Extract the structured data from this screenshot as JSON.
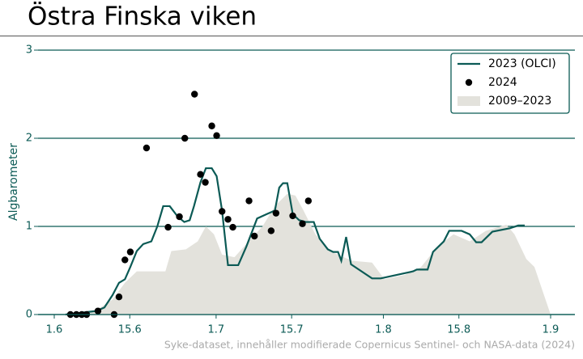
{
  "chart_data": {
    "type": "line",
    "title": "Östra Finska viken",
    "ylabel": "Algbarometer",
    "source": "Syke-dataset, innehåller modifierade Copernicus Sentinel- och NASA-data (2024)",
    "xlim": [
      -3,
      96.5
    ],
    "xticks": [
      {
        "value": 0,
        "label": "1.6"
      },
      {
        "value": 14,
        "label": "15.6"
      },
      {
        "value": 30,
        "label": "1.7"
      },
      {
        "value": 44,
        "label": "15.7"
      },
      {
        "value": 61,
        "label": "1.8"
      },
      {
        "value": 75,
        "label": "15.8"
      },
      {
        "value": 92,
        "label": "1.9"
      }
    ],
    "ylim": [
      0,
      3
    ],
    "yticks": [
      0,
      1,
      2,
      3
    ],
    "grid": true,
    "legend": "upper right",
    "series": [
      {
        "name": "2023 (OLCI)",
        "type": "line",
        "color": "#0b5a55",
        "x": [
          2.1,
          7.8,
          9.3,
          10.8,
          12,
          13.1,
          14.1,
          15.3,
          16.5,
          18,
          19.1,
          20.2,
          21.4,
          22.9,
          24.1,
          25.1,
          25.9,
          27.1,
          28.1,
          29.2,
          30.1,
          31.1,
          32.2,
          34.1,
          35.6,
          37.6,
          39.4,
          40.9,
          41.7,
          42.4,
          43.2,
          44.2,
          45.4,
          46.6,
          48.1,
          49.2,
          50.7,
          51.7,
          52.6,
          53.2,
          54.1,
          55,
          58.9,
          60.5,
          66.5,
          67.2,
          69.2,
          70.2,
          72.2,
          73.2,
          75.5,
          77,
          78.2,
          79.2,
          81.2,
          84.5,
          86,
          87.2
        ],
        "values": [
          0,
          0.04,
          0.08,
          0.22,
          0.36,
          0.4,
          0.54,
          0.72,
          0.8,
          0.83,
          1.0,
          1.23,
          1.23,
          1.11,
          1.05,
          1.07,
          1.23,
          1.5,
          1.66,
          1.66,
          1.57,
          1.18,
          0.56,
          0.56,
          0.77,
          1.09,
          1.14,
          1.18,
          1.44,
          1.49,
          1.49,
          1.14,
          1.07,
          1.05,
          1.05,
          0.86,
          0.74,
          0.71,
          0.71,
          0.61,
          0.88,
          0.57,
          0.41,
          0.41,
          0.49,
          0.51,
          0.51,
          0.71,
          0.83,
          0.95,
          0.95,
          0.91,
          0.82,
          0.82,
          0.94,
          0.98,
          1.01,
          1.01
        ]
      },
      {
        "name": "2024",
        "type": "scatter",
        "color": "#000000",
        "x": [
          3.0,
          4.1,
          5.1,
          6.0,
          8.1,
          11.1,
          12.0,
          13.1,
          14.1,
          17.1,
          21.1,
          23.2,
          24.2,
          26.0,
          27.1,
          28.0,
          29.2,
          30.1,
          31.1,
          32.2,
          33.1,
          36.1,
          37.1,
          40.2,
          41.1,
          44.2,
          46.0,
          47.1
        ],
        "values": [
          0,
          0,
          0,
          0,
          0.04,
          0,
          0.2,
          0.62,
          0.71,
          1.89,
          0.99,
          1.11,
          2.0,
          2.5,
          1.59,
          1.5,
          2.14,
          2.03,
          1.17,
          1.08,
          0.99,
          1.29,
          0.89,
          0.95,
          1.15,
          1.12,
          1.03,
          1.29
        ]
      },
      {
        "name": "2009–2023",
        "type": "area",
        "color": "#e3e2dc",
        "x": [
          4.1,
          7.8,
          10.8,
          13.1,
          15.3,
          18.3,
          20.6,
          21.7,
          24.4,
          26.6,
          28.1,
          29.6,
          31.1,
          33.4,
          35.6,
          38.6,
          40.9,
          43.2,
          44.7,
          46.2,
          48.4,
          51.4,
          55.2,
          58.9,
          61.2,
          65,
          68,
          71,
          74,
          77,
          80,
          83.8,
          85.3,
          87.5,
          89,
          90.5,
          92
        ],
        "values": [
          0,
          0.05,
          0.17,
          0.36,
          0.49,
          0.49,
          0.49,
          0.72,
          0.74,
          0.83,
          1.0,
          0.91,
          0.68,
          0.65,
          0.8,
          1.0,
          1.23,
          1.37,
          1.35,
          1.18,
          0.91,
          0.71,
          0.61,
          0.59,
          0.4,
          0.45,
          0.54,
          0.77,
          0.91,
          0.83,
          0.95,
          1.02,
          0.91,
          0.63,
          0.54,
          0.27,
          0
        ]
      }
    ]
  }
}
